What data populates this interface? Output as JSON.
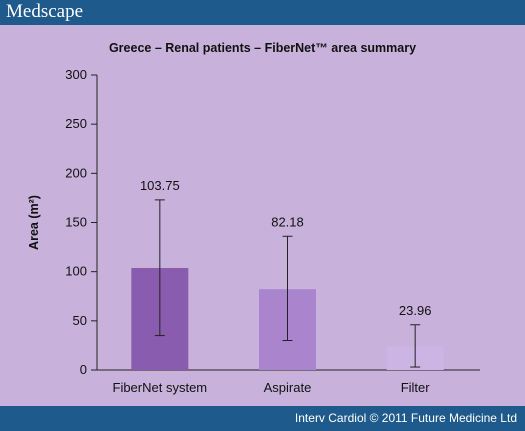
{
  "header": {
    "brand": "Medscape"
  },
  "footer": {
    "credit": "Interv Cardiol © 2011 Future Medicine Ltd"
  },
  "chart_data": {
    "type": "bar",
    "title": "Greece – Renal patients – FiberNet™ area summary",
    "xlabel": "",
    "ylabel": "Area (m²)",
    "ylim": [
      0,
      300
    ],
    "yticks": [
      0,
      50,
      100,
      150,
      200,
      250,
      300
    ],
    "categories": [
      "FiberNet system",
      "Aspirate",
      "Filter"
    ],
    "values": [
      103.75,
      82.18,
      23.96
    ],
    "value_labels": [
      "103.75",
      "82.18",
      "23.96"
    ],
    "error_low": [
      35,
      30,
      3
    ],
    "error_high": [
      173,
      136,
      46
    ],
    "colors": [
      "#8a5cb0",
      "#aa84cc",
      "#ccb4e4"
    ],
    "grid": false
  }
}
